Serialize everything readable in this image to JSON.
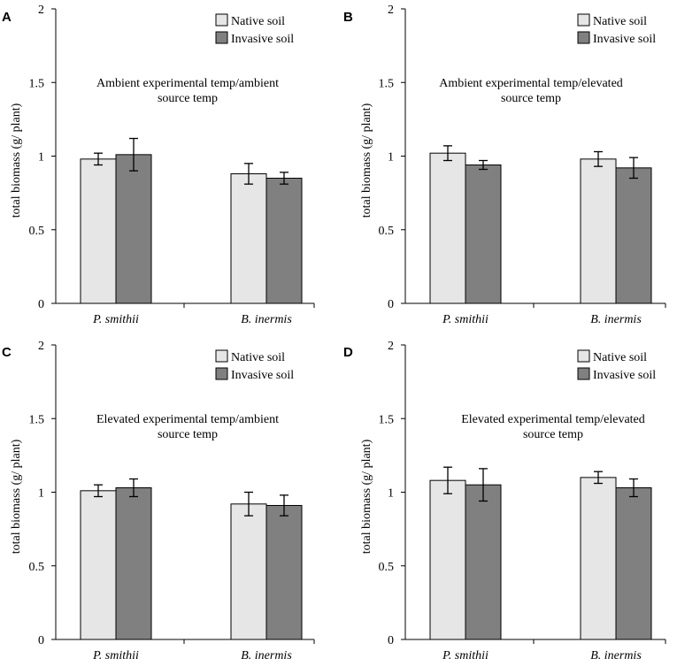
{
  "chart_data": [
    {
      "panel": "A",
      "type": "bar",
      "annotation": [
        "Ambient experimental temp/ambient",
        "source temp"
      ],
      "ylabel": "total biomass (g/ plant)",
      "ylim": [
        0,
        2
      ],
      "yticks": [
        "0",
        "0.5",
        "1",
        "1.5",
        "2"
      ],
      "categories": [
        "P. smithii",
        "B. inermis"
      ],
      "series": [
        {
          "name": "Native soil",
          "color": "#e6e6e6",
          "values": [
            0.98,
            0.88
          ],
          "errors": [
            0.04,
            0.07
          ]
        },
        {
          "name": "Invasive soil",
          "color": "#808080",
          "values": [
            1.01,
            0.85
          ],
          "errors": [
            0.11,
            0.04
          ]
        }
      ]
    },
    {
      "panel": "B",
      "type": "bar",
      "annotation": [
        "Ambient experimental temp/elevated",
        "source temp"
      ],
      "ylabel": "total biomass (g/ plant)",
      "ylim": [
        0,
        2
      ],
      "yticks": [
        "0",
        "0.5",
        "1",
        "1.5",
        "2"
      ],
      "categories": [
        "P. smithii",
        "B. inermis"
      ],
      "series": [
        {
          "name": "Native soil",
          "color": "#e6e6e6",
          "values": [
            1.02,
            0.98
          ],
          "errors": [
            0.05,
            0.05
          ]
        },
        {
          "name": "Invasive soil",
          "color": "#808080",
          "values": [
            0.94,
            0.92
          ],
          "errors": [
            0.03,
            0.07
          ]
        }
      ]
    },
    {
      "panel": "C",
      "type": "bar",
      "annotation": [
        "Elevated experimental temp/ambient",
        "source temp"
      ],
      "ylabel": "total biomass (g/ plant)",
      "ylim": [
        0,
        2
      ],
      "yticks": [
        "0",
        "0.5",
        "1",
        "1.5",
        "2"
      ],
      "categories": [
        "P. smithii",
        "B. inermis"
      ],
      "series": [
        {
          "name": "Native soil",
          "color": "#e6e6e6",
          "values": [
            1.01,
            0.92
          ],
          "errors": [
            0.04,
            0.08
          ]
        },
        {
          "name": "Invasive soil",
          "color": "#808080",
          "values": [
            1.03,
            0.91
          ],
          "errors": [
            0.06,
            0.07
          ]
        }
      ]
    },
    {
      "panel": "D",
      "type": "bar",
      "annotation": [
        "Elevated experimental temp/elevated",
        "source temp"
      ],
      "ylabel": "total biomass (g/ plant)",
      "ylim": [
        0,
        2
      ],
      "yticks": [
        "0",
        "0.5",
        "1",
        "1.5",
        "2"
      ],
      "categories": [
        "P. smithii",
        "B. inermis"
      ],
      "series": [
        {
          "name": "Native soil",
          "color": "#e6e6e6",
          "values": [
            1.08,
            1.1
          ],
          "errors": [
            0.09,
            0.04
          ]
        },
        {
          "name": "Invasive soil",
          "color": "#808080",
          "values": [
            1.05,
            1.03
          ],
          "errors": [
            0.11,
            0.06
          ]
        }
      ]
    }
  ]
}
